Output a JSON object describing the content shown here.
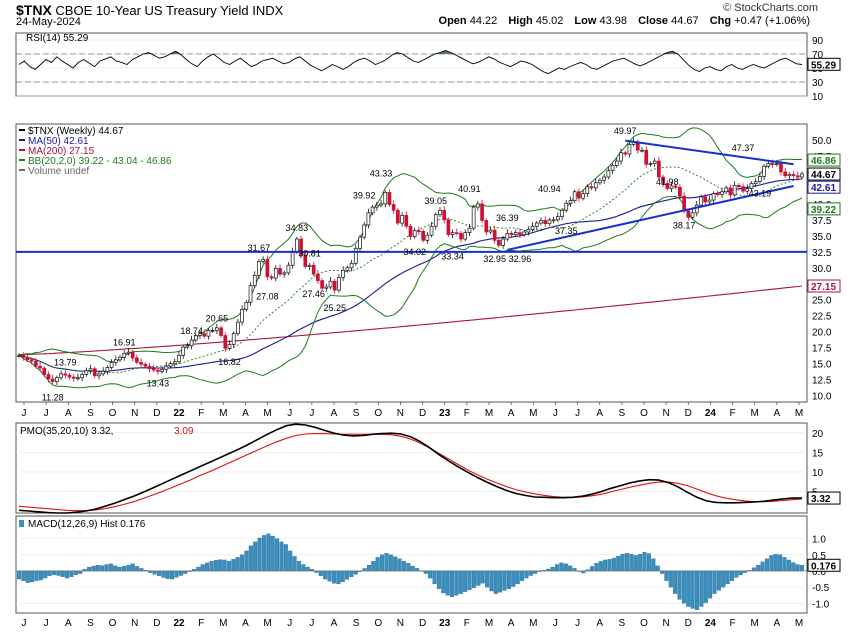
{
  "header": {
    "symbol": "$TNX",
    "name": "CBOE 10-Year US Treasury Yield",
    "exchange": "INDX",
    "date": "24-May-2024",
    "watermark": "© StockCharts.com",
    "ohlc": [
      {
        "label": "Open",
        "value": "44.22"
      },
      {
        "label": "High",
        "value": "45.02"
      },
      {
        "label": "Low",
        "value": "43.98"
      },
      {
        "label": "Close",
        "value": "44.67"
      },
      {
        "label": "Chg",
        "value": "+0.47 (+1.06%)"
      }
    ]
  },
  "colors": {
    "up": "#111111",
    "down": "#cc1133",
    "ma50": "#1a1a99",
    "ma200": "#aa1144",
    "bb": "#1e7a1e",
    "trend": "#1530cc",
    "pmo": "#000000",
    "pmo_signal": "#dd1111",
    "macd_hist": "#3a8fbf",
    "rsi": "#000000"
  },
  "chart_data": [
    {
      "type": "line",
      "panel": "RSI",
      "legend": "RSI(14) 55.29",
      "current": "55.29",
      "ylim": [
        10,
        100
      ],
      "yticks": [
        "90",
        "70",
        "50",
        "30",
        "10"
      ],
      "levels": [
        70,
        30
      ],
      "values": [
        55,
        60,
        52,
        48,
        55,
        62,
        58,
        66,
        60,
        55,
        50,
        58,
        62,
        57,
        52,
        60,
        63,
        66,
        60,
        58,
        55,
        62,
        66,
        70,
        72,
        68,
        64,
        66,
        70,
        74,
        69,
        62,
        56,
        52,
        60,
        66,
        70,
        64,
        58,
        55,
        60,
        64,
        58,
        52,
        55,
        60,
        62,
        64,
        60,
        56,
        58,
        63,
        66,
        60,
        54,
        50,
        46,
        50,
        55,
        52,
        48,
        52,
        58,
        62,
        64,
        60,
        55,
        58,
        62,
        68,
        72,
        70,
        65,
        60,
        58,
        62,
        66,
        70,
        72,
        75,
        72,
        68,
        64,
        60,
        56,
        58,
        62,
        66,
        63,
        58,
        55,
        52,
        56,
        60,
        58,
        55,
        50,
        45,
        42,
        46,
        50,
        48,
        52,
        55,
        58,
        55,
        50,
        48,
        52,
        56,
        60,
        62,
        64,
        60,
        56,
        53,
        56,
        60,
        64,
        68,
        72,
        74,
        70,
        62,
        54,
        48,
        45,
        50,
        52,
        48,
        46,
        52,
        55,
        50,
        48,
        52,
        55,
        52,
        50,
        54,
        58,
        62,
        64,
        60,
        56,
        55
      ]
    },
    {
      "type": "line",
      "panel": "price",
      "title": "$TNX (Weekly) 44.67",
      "legend": [
        {
          "label": "$TNX (Weekly) 44.67",
          "color": "#000000"
        },
        {
          "label": "MA(50) 42.61",
          "color": "#1a1a99"
        },
        {
          "label": "MA(200) 27.15",
          "color": "#aa1144"
        },
        {
          "label": "BB(20,2.0) 39.22 - 43.04 - 46.86",
          "color": "#1e7a1e"
        },
        {
          "label": "Volume undef",
          "color": "#666666"
        }
      ],
      "ylim": [
        9,
        52.5
      ],
      "yticks": [
        "50.0",
        "47.5",
        "45.0",
        "42.5",
        "40.0",
        "37.5",
        "35.0",
        "32.5",
        "30.0",
        "27.5",
        "25.0",
        "22.5",
        "20.0",
        "17.5",
        "15.0",
        "12.5",
        "10.0"
      ],
      "xticks": [
        "J",
        "J",
        "A",
        "S",
        "O",
        "N",
        "D",
        "22",
        "F",
        "M",
        "A",
        "M",
        "J",
        "J",
        "A",
        "S",
        "O",
        "N",
        "D",
        "23",
        "F",
        "M",
        "A",
        "M",
        "J",
        "J",
        "A",
        "S",
        "O",
        "N",
        "D",
        "24",
        "F",
        "M",
        "A",
        "M"
      ],
      "horizontal_line": 32.5,
      "value_tags": [
        {
          "label": "46.86",
          "value": 46.86,
          "color": "#1e7a1e"
        },
        {
          "label": "44.67",
          "value": 44.67,
          "color": "#000000"
        },
        {
          "label": "42.61",
          "value": 42.61,
          "color": "#1a1a99"
        },
        {
          "label": "39.22",
          "value": 39.22,
          "color": "#1e7a1e"
        },
        {
          "label": "27.15",
          "value": 27.15,
          "color": "#aa1144"
        }
      ],
      "annotations": [
        {
          "text": "11.28",
          "i": 8,
          "v": 11.28,
          "pos": "below"
        },
        {
          "text": "13.79",
          "i": 11,
          "v": 13.79,
          "pos": "above"
        },
        {
          "text": "16.91",
          "i": 25,
          "v": 16.91,
          "pos": "above"
        },
        {
          "text": "13.43",
          "i": 33,
          "v": 13.43,
          "pos": "below"
        },
        {
          "text": "18.74",
          "i": 41,
          "v": 18.74,
          "pos": "above"
        },
        {
          "text": "20.65",
          "i": 47,
          "v": 20.65,
          "pos": "above"
        },
        {
          "text": "16.82",
          "i": 50,
          "v": 16.82,
          "pos": "below"
        },
        {
          "text": "31.67",
          "i": 57,
          "v": 31.67,
          "pos": "above"
        },
        {
          "text": "27.08",
          "i": 59,
          "v": 27.08,
          "pos": "below"
        },
        {
          "text": "34.83",
          "i": 66,
          "v": 34.83,
          "pos": "above"
        },
        {
          "text": "30.81",
          "i": 69,
          "v": 30.81,
          "pos": "above"
        },
        {
          "text": "27.46",
          "i": 70,
          "v": 27.46,
          "pos": "below"
        },
        {
          "text": "25.25",
          "i": 75,
          "v": 25.25,
          "pos": "below"
        },
        {
          "text": "39.92",
          "i": 82,
          "v": 39.92,
          "pos": "above"
        },
        {
          "text": "43.33",
          "i": 86,
          "v": 43.33,
          "pos": "above"
        },
        {
          "text": "34.02",
          "i": 94,
          "v": 34.02,
          "pos": "below"
        },
        {
          "text": "39.05",
          "i": 99,
          "v": 39.05,
          "pos": "above"
        },
        {
          "text": "33.34",
          "i": 103,
          "v": 33.34,
          "pos": "below"
        },
        {
          "text": "40.91",
          "i": 107,
          "v": 40.91,
          "pos": "above"
        },
        {
          "text": "32.95",
          "i": 113,
          "v": 32.95,
          "pos": "below"
        },
        {
          "text": "36.39",
          "i": 116,
          "v": 36.39,
          "pos": "above"
        },
        {
          "text": "32.96",
          "i": 119,
          "v": 32.96,
          "pos": "below"
        },
        {
          "text": "40.94",
          "i": 126,
          "v": 40.94,
          "pos": "above"
        },
        {
          "text": "37.35",
          "i": 130,
          "v": 37.35,
          "pos": "below"
        },
        {
          "text": "49.97",
          "i": 144,
          "v": 49.97,
          "pos": "above"
        },
        {
          "text": "41.98",
          "i": 154,
          "v": 41.98,
          "pos": "above"
        },
        {
          "text": "38.17",
          "i": 158,
          "v": 38.17,
          "pos": "below"
        },
        {
          "text": "47.37",
          "i": 172,
          "v": 47.37,
          "pos": "above"
        },
        {
          "text": "43.19",
          "i": 176,
          "v": 43.19,
          "pos": "below"
        }
      ],
      "trendlines": [
        {
          "from": {
            "i": 144,
            "v": 49.9
          },
          "to": {
            "i": 184,
            "v": 46.2
          }
        },
        {
          "from": {
            "i": 116,
            "v": 32.8
          },
          "to": {
            "i": 184,
            "v": 42.8
          }
        }
      ],
      "weekly_close_estimates": [
        16.3,
        16.0,
        15.6,
        15.4,
        14.6,
        14.3,
        13.3,
        12.6,
        12.2,
        12.8,
        13.4,
        13.2,
        12.9,
        12.7,
        12.8,
        13.3,
        13.9,
        14.2,
        13.1,
        13.4,
        13.8,
        14.4,
        15.2,
        15.6,
        16.0,
        16.6,
        16.8,
        15.9,
        15.2,
        14.9,
        14.6,
        14.2,
        14.0,
        13.8,
        14.1,
        14.6,
        15.0,
        15.3,
        16.3,
        17.6,
        17.8,
        18.7,
        19.4,
        19.7,
        19.3,
        20.2,
        20.2,
        20.6,
        19.4,
        17.4,
        18.0,
        19.7,
        21.5,
        23.5,
        24.6,
        27.2,
        28.8,
        31.0,
        31.3,
        28.6,
        28.4,
        29.9,
        29.0,
        29.2,
        30.4,
        32.5,
        34.5,
        32.0,
        30.2,
        30.4,
        29.0,
        28.0,
        26.8,
        27.0,
        27.9,
        26.5,
        28.5,
        29.6,
        30.0,
        30.7,
        33.0,
        34.8,
        36.7,
        38.6,
        39.5,
        39.8,
        40.0,
        41.8,
        39.9,
        39.0,
        37.0,
        38.2,
        36.5,
        34.9,
        35.8,
        35.7,
        34.3,
        35.1,
        36.5,
        38.3,
        39.0,
        37.5,
        35.2,
        35.5,
        35.4,
        34.5,
        35.5,
        36.2,
        39.5,
        40.0,
        37.4,
        35.6,
        35.9,
        34.3,
        33.5,
        34.5,
        35.4,
        35.2,
        35.5,
        35.2,
        35.6,
        36.0,
        36.5,
        37.0,
        37.4,
        36.9,
        37.5,
        37.5,
        38.0,
        39.0,
        40.1,
        40.5,
        41.9,
        40.9,
        41.6,
        42.7,
        42.5,
        43.3,
        43.7,
        44.2,
        45.2,
        46.0,
        46.7,
        48.0,
        47.8,
        49.3,
        49.7,
        48.4,
        48.4,
        46.2,
        46.3,
        46.7,
        44.2,
        43.2,
        42.4,
        42.8,
        42.6,
        41.2,
        38.9,
        37.9,
        38.6,
        39.8,
        41.1,
        40.3,
        40.6,
        41.6,
        41.5,
        41.9,
        42.5,
        41.4,
        42.9,
        42.7,
        42.0,
        42.4,
        43.2,
        43.5,
        44.3,
        45.9,
        46.3,
        46.2,
        46.3,
        45.0,
        44.4,
        44.6,
        44.4,
        44.2,
        44.7
      ]
    },
    {
      "type": "line",
      "panel": "PMO",
      "legend": "PMO(35,20,10) 3.32, 3.09",
      "pmo_current": "3.32",
      "signal_current": "3.09",
      "ylim": [
        -0.5,
        22.5
      ],
      "yticks": [
        "20",
        "15",
        "10",
        "5"
      ],
      "pmo_values": [
        0.2,
        0.0,
        -0.2,
        -0.4,
        -0.5,
        -0.5,
        -0.3,
        0.0,
        0.5,
        1.2,
        2.0,
        2.9,
        3.8,
        4.8,
        5.9,
        7.0,
        8.1,
        9.2,
        10.3,
        11.4,
        12.5,
        13.6,
        14.7,
        15.8,
        17.0,
        18.3,
        19.6,
        20.8,
        21.8,
        22.2,
        22.0,
        21.4,
        20.6,
        19.9,
        19.4,
        19.2,
        19.3,
        19.6,
        19.8,
        19.9,
        19.7,
        19.0,
        17.8,
        16.2,
        14.4,
        12.8,
        11.3,
        9.9,
        8.6,
        7.4,
        6.3,
        5.3,
        4.5,
        4.0,
        3.6,
        3.5,
        3.4,
        3.4,
        3.5,
        3.8,
        4.3,
        5.0,
        5.8,
        6.5,
        7.2,
        7.7,
        8.0,
        7.9,
        7.3,
        6.2,
        4.8,
        3.5,
        2.6,
        2.2,
        2.1,
        2.1,
        2.2,
        2.3,
        2.5,
        2.8,
        3.1,
        3.3,
        3.3
      ],
      "signal_values": [
        1.2,
        1.0,
        0.8,
        0.6,
        0.4,
        0.2,
        0.1,
        0.1,
        0.3,
        0.6,
        1.1,
        1.7,
        2.4,
        3.2,
        4.1,
        5.0,
        6.0,
        7.0,
        8.0,
        9.1,
        10.1,
        11.2,
        12.3,
        13.4,
        14.5,
        15.6,
        16.7,
        17.7,
        18.6,
        19.3,
        19.7,
        19.8,
        19.8,
        19.7,
        19.6,
        19.6,
        19.6,
        19.6,
        19.6,
        19.5,
        19.1,
        18.4,
        17.4,
        16.1,
        14.7,
        13.3,
        11.9,
        10.5,
        9.3,
        8.2,
        7.2,
        6.3,
        5.5,
        4.9,
        4.4,
        4.0,
        3.7,
        3.5,
        3.5,
        3.6,
        3.9,
        4.3,
        4.9,
        5.5,
        6.1,
        6.6,
        7.1,
        7.4,
        7.4,
        7.1,
        6.5,
        5.6,
        4.7,
        3.9,
        3.3,
        2.9,
        2.6,
        2.4,
        2.4,
        2.5,
        2.7,
        2.9,
        3.1
      ]
    },
    {
      "type": "bar",
      "panel": "MACD",
      "legend": "MACD(12,26,9) Hist 0.176",
      "current": "0.176",
      "ylim": [
        -1.3,
        1.7
      ],
      "yticks": [
        "1.0",
        "0.5",
        "0.0",
        "-0.5",
        "-1.0"
      ],
      "values": [
        -0.25,
        -0.3,
        -0.36,
        -0.34,
        -0.3,
        -0.28,
        -0.22,
        -0.15,
        -0.12,
        -0.14,
        -0.18,
        -0.22,
        -0.18,
        -0.12,
        -0.08,
        0.05,
        0.12,
        0.15,
        0.18,
        0.16,
        0.2,
        0.22,
        0.16,
        0.12,
        0.15,
        0.18,
        0.22,
        0.14,
        0.08,
        0.02,
        -0.05,
        -0.1,
        -0.15,
        -0.2,
        -0.24,
        -0.25,
        -0.2,
        -0.14,
        -0.08,
        -0.02,
        0.05,
        0.12,
        0.2,
        0.25,
        0.3,
        0.33,
        0.35,
        0.34,
        0.3,
        0.36,
        0.42,
        0.5,
        0.62,
        0.78,
        0.9,
        1.02,
        1.1,
        1.15,
        1.08,
        1.0,
        0.9,
        0.82,
        0.62,
        0.45,
        0.3,
        0.2,
        0.12,
        0.05,
        -0.05,
        -0.15,
        -0.25,
        -0.32,
        -0.38,
        -0.4,
        -0.34,
        -0.26,
        -0.18,
        -0.1,
        -0.02,
        0.08,
        0.18,
        0.3,
        0.42,
        0.5,
        0.55,
        0.5,
        0.44,
        0.38,
        0.3,
        0.24,
        0.15,
        0.08,
        0.0,
        -0.08,
        -0.22,
        -0.4,
        -0.55,
        -0.68,
        -0.75,
        -0.8,
        -0.75,
        -0.7,
        -0.64,
        -0.58,
        -0.52,
        -0.45,
        -0.38,
        -0.5,
        -0.62,
        -0.7,
        -0.66,
        -0.6,
        -0.55,
        -0.48,
        -0.4,
        -0.3,
        -0.22,
        -0.14,
        -0.08,
        -0.02,
        0.02,
        0.06,
        0.12,
        0.2,
        0.25,
        0.22,
        0.16,
        0.08,
        0.0,
        -0.06,
        0.04,
        0.14,
        0.24,
        0.3,
        0.34,
        0.36,
        0.4,
        0.46,
        0.52,
        0.55,
        0.52,
        0.48,
        0.52,
        0.58,
        0.54,
        0.38,
        0.16,
        -0.08,
        -0.3,
        -0.5,
        -0.7,
        -0.88,
        -1.0,
        -1.1,
        -1.16,
        -1.2,
        -1.1,
        -0.98,
        -0.84,
        -0.7,
        -0.6,
        -0.5,
        -0.4,
        -0.3,
        -0.2,
        -0.12,
        -0.05,
        0.02,
        0.1,
        0.18,
        0.28,
        0.38,
        0.48,
        0.52,
        0.5,
        0.42,
        0.34,
        0.26,
        0.2,
        0.18
      ]
    }
  ]
}
